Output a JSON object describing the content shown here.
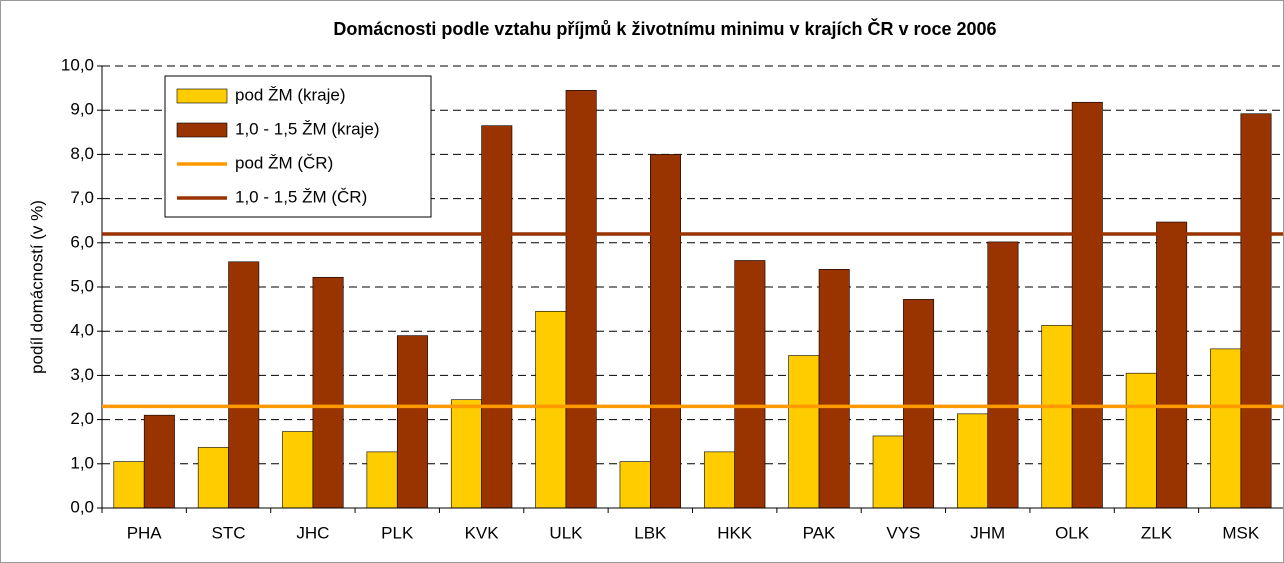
{
  "chart_data": {
    "type": "bar",
    "title": "Domácnosti podle vztahu příjmů k životnímu minimu v krajích ČR v roce 2006",
    "ylabel": "podíl domácností (v %)",
    "categories": [
      "PHA",
      "STC",
      "JHC",
      "PLK",
      "KVK",
      "ULK",
      "LBK",
      "HKK",
      "PAK",
      "VYS",
      "JHM",
      "OLK",
      "ZLK",
      "MSK"
    ],
    "series": [
      {
        "name": "pod ŽM (kraje)",
        "color": "#ffcc00",
        "values": [
          1.05,
          1.37,
          1.73,
          1.27,
          2.45,
          4.45,
          1.05,
          1.27,
          3.45,
          1.63,
          2.13,
          4.13,
          3.05,
          3.6
        ]
      },
      {
        "name": "1,0 - 1,5 ŽM (kraje)",
        "color": "#993300",
        "values": [
          2.1,
          5.57,
          5.22,
          3.9,
          8.65,
          9.45,
          8.0,
          5.6,
          5.4,
          4.72,
          6.02,
          9.18,
          6.47,
          8.92
        ]
      }
    ],
    "reference_lines": [
      {
        "name": "pod ŽM (ČR)",
        "color": "#ff9900",
        "value": 2.3
      },
      {
        "name": "1,0 - 1,5 ŽM (ČR)",
        "color": "#993300",
        "value": 6.2
      }
    ],
    "ylim": [
      0,
      10
    ],
    "yticks": [
      {
        "value": 0,
        "label": "0,0"
      },
      {
        "value": 1,
        "label": "1,0"
      },
      {
        "value": 2,
        "label": "2,0"
      },
      {
        "value": 3,
        "label": "3,0"
      },
      {
        "value": 4,
        "label": "4,0"
      },
      {
        "value": 5,
        "label": "5,0"
      },
      {
        "value": 6,
        "label": "6,0"
      },
      {
        "value": 7,
        "label": "7,0"
      },
      {
        "value": 8,
        "label": "8,0"
      },
      {
        "value": 9,
        "label": "9,0"
      },
      {
        "value": 10,
        "label": "10,0"
      }
    ],
    "grid": true,
    "legend": "top-left"
  }
}
